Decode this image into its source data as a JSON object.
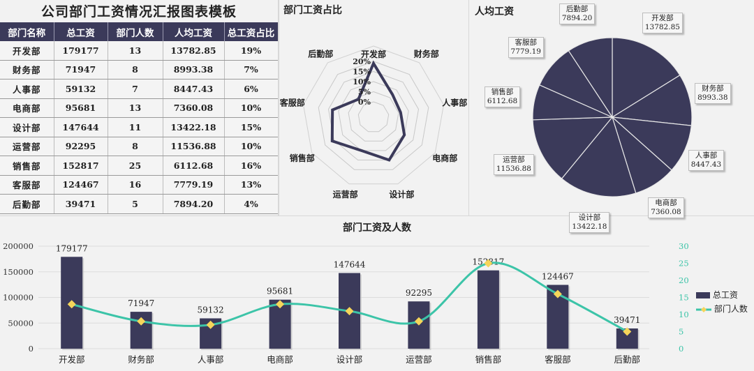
{
  "title": "公司部门工资情况汇报图表模板",
  "table": {
    "headers": [
      "部门名称",
      "总工资",
      "部门人数",
      "人均工资",
      "总工资占比"
    ],
    "rows": [
      [
        "开发部",
        "179177",
        "13",
        "13782.85",
        "19%"
      ],
      [
        "财务部",
        "71947",
        "8",
        "8993.38",
        "7%"
      ],
      [
        "人事部",
        "59132",
        "7",
        "8447.43",
        "6%"
      ],
      [
        "电商部",
        "95681",
        "13",
        "7360.08",
        "10%"
      ],
      [
        "设计部",
        "147644",
        "11",
        "13422.18",
        "15%"
      ],
      [
        "运营部",
        "92295",
        "8",
        "11536.88",
        "10%"
      ],
      [
        "销售部",
        "152817",
        "25",
        "6112.68",
        "16%"
      ],
      [
        "客服部",
        "124467",
        "16",
        "7779.19",
        "13%"
      ],
      [
        "后勤部",
        "39471",
        "5",
        "7894.20",
        "4%"
      ]
    ]
  },
  "colors": {
    "navy": "#3b3a5a",
    "teal": "#3cc4a8",
    "marker": "#f5d55a",
    "grid": "#e0e0e0",
    "background": "#f2f2f2"
  },
  "chart_data": [
    {
      "type": "radar",
      "title": "部门工资占比",
      "categories": [
        "开发部",
        "财务部",
        "人事部",
        "电商部",
        "设计部",
        "运营部",
        "销售部",
        "客服部",
        "后勤部"
      ],
      "values": [
        19,
        7,
        6,
        10,
        15,
        10,
        16,
        13,
        4
      ],
      "unit": "%",
      "radial_ticks": [
        "0%",
        "5%",
        "10%",
        "15%",
        "20%"
      ],
      "rlim": [
        0,
        20
      ]
    },
    {
      "type": "pie",
      "title": "人均工资",
      "categories": [
        "开发部",
        "财务部",
        "人事部",
        "电商部",
        "设计部",
        "运营部",
        "销售部",
        "客服部",
        "后勤部"
      ],
      "values": [
        13782.85,
        8993.38,
        8447.43,
        7360.08,
        13422.18,
        11536.88,
        6112.68,
        7779.19,
        7894.2
      ],
      "labels": [
        "13782.85",
        "8993.38",
        "8447.43",
        "7360.08",
        "13422.18",
        "11536.88",
        "6112.68",
        "7779.19",
        "7894.20"
      ]
    },
    {
      "type": "bar+line",
      "title": "部门工资及人数",
      "categories": [
        "开发部",
        "财务部",
        "人事部",
        "电商部",
        "设计部",
        "运营部",
        "销售部",
        "客服部",
        "后勤部"
      ],
      "series": [
        {
          "name": "总工资",
          "type": "bar",
          "axis": "left",
          "values": [
            179177,
            71947,
            59132,
            95681,
            147644,
            92295,
            152817,
            124467,
            39471
          ]
        },
        {
          "name": "部门人数",
          "type": "line",
          "axis": "right",
          "values": [
            13,
            8,
            7,
            13,
            11,
            8,
            25,
            16,
            5
          ]
        }
      ],
      "yleft_ticks": [
        "0",
        "50000",
        "100000",
        "150000",
        "200000"
      ],
      "yleft_lim": [
        0,
        200000
      ],
      "yright_ticks": [
        "0",
        "5",
        "10",
        "15",
        "20",
        "25",
        "30"
      ],
      "yright_lim": [
        0,
        30
      ],
      "legend": [
        "总工资",
        "部门人数"
      ],
      "legend_position": "right"
    }
  ]
}
